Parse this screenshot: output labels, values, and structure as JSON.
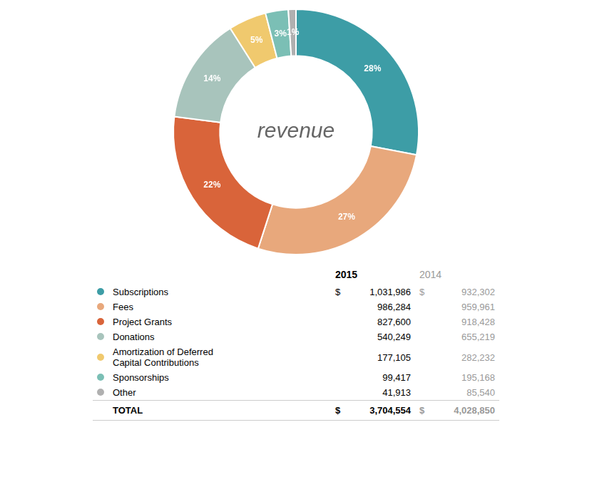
{
  "chart_data": {
    "type": "doughnut",
    "values": [
      28,
      27,
      22,
      14,
      5,
      3,
      1
    ],
    "value_labels": [
      "28%",
      "27%",
      "22%",
      "14%",
      "5%",
      "3%",
      "1%"
    ],
    "colors": [
      "#3d9da6",
      "#e8a87c",
      "#d9643a",
      "#a8c4bc",
      "#f0c96e",
      "#7bbfb5",
      "#b0b0b0"
    ],
    "data_labels": true,
    "annotations": [
      "revenue"
    ]
  },
  "table": {
    "columns": [
      "2015",
      "2014"
    ],
    "rows": [
      {
        "label": [
          "Subscriptions"
        ],
        "color": "#3d9da6",
        "cells": [
          {
            "prefix": "$",
            "text": "1,031,986"
          },
          {
            "prefix": "$",
            "text": "932,302"
          }
        ]
      },
      {
        "label": [
          "Fees"
        ],
        "color": "#e8a87c",
        "cells": [
          {
            "text": "986,284"
          },
          {
            "text": "959,961"
          }
        ]
      },
      {
        "label": [
          "Project Grants"
        ],
        "color": "#d9643a",
        "cells": [
          {
            "text": "827,600"
          },
          {
            "text": "918,428"
          }
        ]
      },
      {
        "label": [
          "Donations"
        ],
        "color": "#a8c4bc",
        "cells": [
          {
            "text": "540,249"
          },
          {
            "text": "655,219"
          }
        ]
      },
      {
        "label": [
          "Amortization of Deferred",
          "Capital Contributions"
        ],
        "color": "#f0c96e",
        "cells": [
          {
            "text": "177,105"
          },
          {
            "text": "282,232"
          }
        ]
      },
      {
        "label": [
          "Sponsorships"
        ],
        "color": "#7bbfb5",
        "cells": [
          {
            "text": "99,417"
          },
          {
            "text": "195,168"
          }
        ]
      },
      {
        "label": [
          "Other"
        ],
        "color": "#b0b0b0",
        "cells": [
          {
            "text": "41,913"
          },
          {
            "text": "85,540"
          }
        ]
      }
    ],
    "total": {
      "label": [
        "TOTAL"
      ],
      "cells": [
        {
          "prefix": "$",
          "text": "3,704,554"
        },
        {
          "prefix": "$",
          "text": "4,028,850"
        }
      ]
    }
  }
}
